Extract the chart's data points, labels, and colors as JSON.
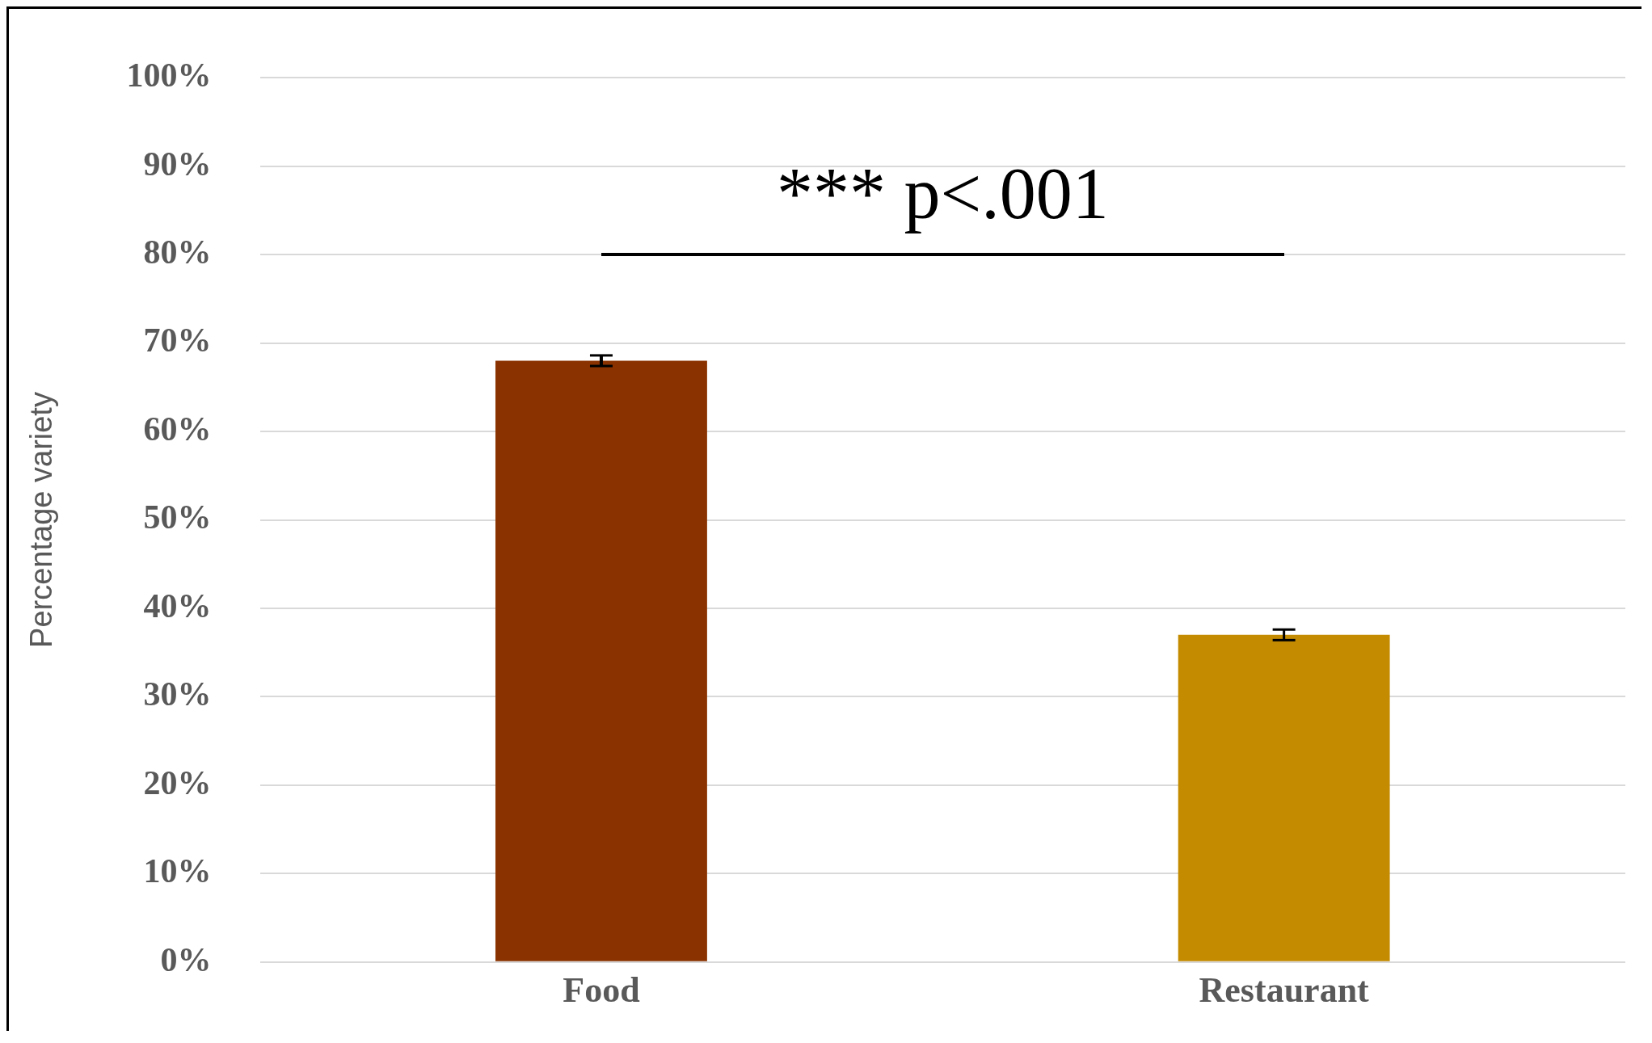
{
  "chart_data": {
    "type": "bar",
    "ylabel": "Percentage variety",
    "categories": [
      "Food",
      "Restaurant"
    ],
    "values": [
      68,
      37
    ],
    "errors": [
      0.6,
      0.6
    ],
    "colors": [
      "#8b3300",
      "#c48b00"
    ],
    "ylim": [
      0,
      100
    ],
    "yticks": [
      {
        "value": 0,
        "label": "0%"
      },
      {
        "value": 10,
        "label": "10%"
      },
      {
        "value": 20,
        "label": "20%"
      },
      {
        "value": 30,
        "label": "30%"
      },
      {
        "value": 40,
        "label": "40%"
      },
      {
        "value": 50,
        "label": "50%"
      },
      {
        "value": 60,
        "label": "60%"
      },
      {
        "value": 70,
        "label": "70%"
      },
      {
        "value": 80,
        "label": "80%"
      },
      {
        "value": 90,
        "label": "90%"
      },
      {
        "value": 100,
        "label": "100%"
      }
    ],
    "grid": "y",
    "legend": false,
    "annotations": [
      "*** p<.001"
    ]
  }
}
